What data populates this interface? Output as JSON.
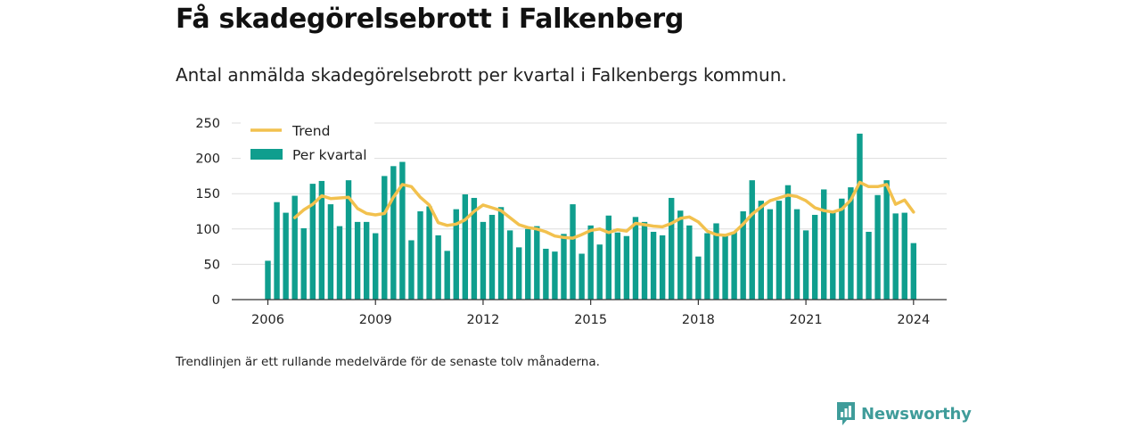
{
  "header": {
    "title": "Få skadegörelsebrott i Falkenberg",
    "subtitle": "Antal anmälda skadegörelsebrott per kvartal i Falkenbergs kommun."
  },
  "footnote": "Trendlinjen är ett rullande medelvärde för de senaste tolv månaderna.",
  "brand": {
    "name": "Newsworthy",
    "color": "#3f9c9a",
    "icon": "bar-chart-logo-icon"
  },
  "chart_data": {
    "type": "bar",
    "x_start_year": 2006,
    "x_ticks": [
      "2006",
      "2009",
      "2012",
      "2015",
      "2018",
      "2021",
      "2024"
    ],
    "y_ticks": [
      "0",
      "50",
      "100",
      "150",
      "200",
      "250"
    ],
    "ylim": [
      0,
      250
    ],
    "grid": true,
    "legend_position": "top-left",
    "series": [
      {
        "name": "Per kvartal",
        "type": "bar",
        "color": "#0f9e8e",
        "values": [
          55,
          138,
          123,
          147,
          101,
          164,
          168,
          135,
          104,
          169,
          110,
          110,
          94,
          175,
          189,
          195,
          84,
          125,
          132,
          91,
          69,
          128,
          149,
          144,
          110,
          120,
          131,
          98,
          74,
          100,
          104,
          72,
          68,
          93,
          135,
          65,
          105,
          78,
          119,
          95,
          90,
          117,
          110,
          96,
          91,
          144,
          126,
          105,
          61,
          94,
          108,
          90,
          96,
          125,
          169,
          140,
          128,
          140,
          162,
          128,
          98,
          120,
          156,
          126,
          143,
          159,
          235,
          96,
          148,
          169,
          122,
          123,
          80
        ]
      },
      {
        "name": "Trend",
        "type": "line",
        "color": "#f2c14e",
        "values": [
          null,
          null,
          null,
          116,
          127,
          135,
          147,
          143,
          144,
          145,
          129,
          122,
          120,
          122,
          145,
          163,
          160,
          145,
          134,
          109,
          105,
          107,
          113,
          125,
          134,
          130,
          126,
          116,
          106,
          102,
          100,
          96,
          90,
          88,
          87,
          92,
          98,
          100,
          95,
          99,
          97,
          108,
          106,
          104,
          103,
          108,
          115,
          117,
          110,
          97,
          92,
          91,
          95,
          107,
          121,
          131,
          140,
          144,
          148,
          146,
          140,
          130,
          126,
          124,
          128,
          141,
          166,
          160,
          160,
          163,
          135,
          141,
          124
        ]
      }
    ]
  }
}
